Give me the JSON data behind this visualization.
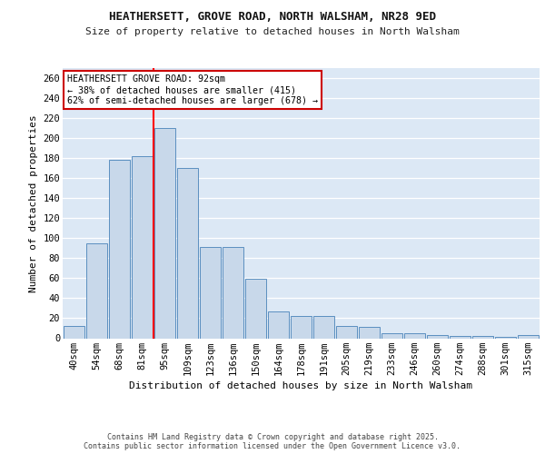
{
  "title1": "HEATHERSETT, GROVE ROAD, NORTH WALSHAM, NR28 9ED",
  "title2": "Size of property relative to detached houses in North Walsham",
  "xlabel": "Distribution of detached houses by size in North Walsham",
  "ylabel": "Number of detached properties",
  "categories": [
    "40sqm",
    "54sqm",
    "68sqm",
    "81sqm",
    "95sqm",
    "109sqm",
    "123sqm",
    "136sqm",
    "150sqm",
    "164sqm",
    "178sqm",
    "191sqm",
    "205sqm",
    "219sqm",
    "233sqm",
    "246sqm",
    "260sqm",
    "274sqm",
    "288sqm",
    "301sqm",
    "315sqm"
  ],
  "values": [
    12,
    95,
    178,
    182,
    210,
    170,
    91,
    91,
    59,
    27,
    22,
    22,
    12,
    11,
    5,
    5,
    3,
    2,
    2,
    1,
    3
  ],
  "bar_color": "#c8d8ea",
  "bar_edge_color": "#5b8fc0",
  "red_line_index": 4,
  "annotation_text": "HEATHERSETT GROVE ROAD: 92sqm\n← 38% of detached houses are smaller (415)\n62% of semi-detached houses are larger (678) →",
  "ylim": [
    0,
    270
  ],
  "yticks": [
    0,
    20,
    40,
    60,
    80,
    100,
    120,
    140,
    160,
    180,
    200,
    220,
    240,
    260
  ],
  "bg_color": "#dce8f5",
  "grid_color": "#ffffff",
  "fig_bg_color": "#ffffff",
  "footer1": "Contains HM Land Registry data © Crown copyright and database right 2025.",
  "footer2": "Contains public sector information licensed under the Open Government Licence v3.0."
}
